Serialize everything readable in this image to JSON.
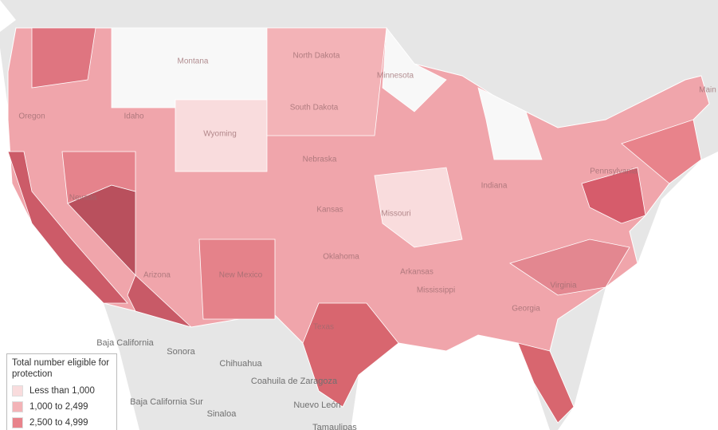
{
  "map": {
    "legend": {
      "title": "Total number eligible for protection",
      "items": [
        {
          "label": "Less than 1,000",
          "color": "#f9dcdd"
        },
        {
          "label": "1,000 to 2,499",
          "color": "#f3b3b7"
        },
        {
          "label": "2,500 to 4,999",
          "color": "#e8838b"
        }
      ]
    },
    "us_labels": [
      "Montana",
      "North Dakota",
      "Minnesota",
      "South Dakota",
      "Wyoming",
      "Oregon",
      "Idaho",
      "Nebraska",
      "Nevada",
      "Kansas",
      "Missouri",
      "Indiana",
      "Oklahoma",
      "Arkansas",
      "Mississippi",
      "Georgia",
      "Texas",
      "Arizona",
      "New Mexico",
      "Virginia",
      "Pennsylvania",
      "Main"
    ],
    "mexico_labels": [
      "Baja California",
      "Sonora",
      "Chihuahua",
      "Coahuila de Zaragoza",
      "Baja California Sur",
      "Sinaloa",
      "Nuevo León",
      "Tamaulipas"
    ]
  }
}
